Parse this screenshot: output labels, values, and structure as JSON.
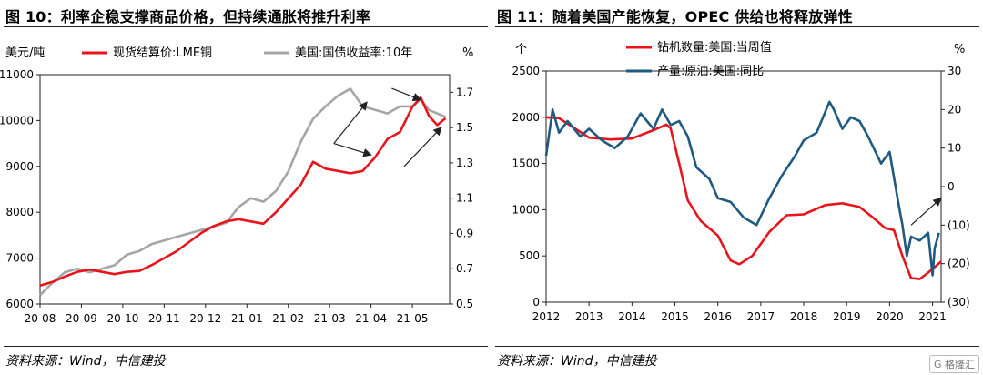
{
  "charts": [
    {
      "title": "图 10：利率企稳支撑商品价格，但持续通胀将推升利率",
      "source": "资料来源：Wind，中信建投",
      "ylabel_left": "美元/吨",
      "ylabel_right": "%",
      "legend": [
        "现货结算价:LME铜",
        "美国:国债收益率:10年"
      ]
    },
    {
      "title": "图 11：随着美国产能恢复，OPEC 供给也将释放弹性",
      "source": "资料来源：Wind，中信建投",
      "ylabel_left": "个",
      "ylabel_right": "%",
      "legend": [
        "钻机数量:美国:当周值",
        "产量:原油:美国:同比"
      ]
    }
  ],
  "chart_data": [
    {
      "type": "line",
      "title": "图 10：利率企稳支撑商品价格，但持续通胀将推升利率",
      "x_ticks": [
        "20-08",
        "20-09",
        "20-10",
        "20-11",
        "20-12",
        "21-01",
        "21-02",
        "21-03",
        "21-04",
        "21-05"
      ],
      "x_range": [
        0,
        9.9
      ],
      "y_left": {
        "label": "美元/吨",
        "range": [
          6000,
          11000
        ],
        "ticks": [
          6000,
          7000,
          8000,
          9000,
          10000,
          11000
        ]
      },
      "y_right": {
        "label": "%",
        "range": [
          0.5,
          1.8
        ],
        "ticks": [
          0.5,
          0.7,
          0.9,
          1.1,
          1.3,
          1.5,
          1.7
        ]
      },
      "series": [
        {
          "name": "现货结算价:LME铜",
          "axis": "left",
          "color": "#e8141c",
          "x": [
            0,
            0.3,
            0.6,
            0.9,
            1.2,
            1.5,
            1.8,
            2.1,
            2.4,
            2.7,
            3.0,
            3.3,
            3.6,
            3.9,
            4.2,
            4.5,
            4.8,
            5.1,
            5.4,
            5.7,
            6.0,
            6.3,
            6.6,
            6.9,
            7.2,
            7.5,
            7.8,
            8.1,
            8.4,
            8.7,
            9.0,
            9.2,
            9.4,
            9.6,
            9.8
          ],
          "values": [
            6400,
            6480,
            6600,
            6700,
            6750,
            6700,
            6650,
            6700,
            6720,
            6850,
            7000,
            7150,
            7350,
            7550,
            7700,
            7800,
            7850,
            7800,
            7750,
            8000,
            8300,
            8600,
            9100,
            8950,
            8900,
            8850,
            8900,
            9200,
            9600,
            9750,
            10300,
            10500,
            10100,
            9900,
            10050
          ]
        },
        {
          "name": "美国:国债收益率:10年",
          "axis": "right",
          "color": "#a6a6a6",
          "x": [
            0,
            0.3,
            0.6,
            0.9,
            1.2,
            1.5,
            1.8,
            2.1,
            2.4,
            2.7,
            3.0,
            3.3,
            3.6,
            3.9,
            4.2,
            4.5,
            4.8,
            5.1,
            5.4,
            5.7,
            6.0,
            6.3,
            6.6,
            6.9,
            7.2,
            7.5,
            7.8,
            8.1,
            8.4,
            8.7,
            9.0,
            9.2,
            9.4,
            9.6,
            9.8
          ],
          "values": [
            0.55,
            0.62,
            0.68,
            0.7,
            0.68,
            0.7,
            0.72,
            0.78,
            0.8,
            0.84,
            0.86,
            0.88,
            0.9,
            0.92,
            0.94,
            0.96,
            1.05,
            1.1,
            1.08,
            1.14,
            1.25,
            1.42,
            1.55,
            1.62,
            1.68,
            1.72,
            1.62,
            1.6,
            1.58,
            1.62,
            1.62,
            1.66,
            1.6,
            1.58,
            1.56
          ]
        }
      ],
      "arrows": [
        {
          "from": [
            7.1,
            9500
          ],
          "to": [
            7.9,
            10400
          ]
        },
        {
          "from": [
            7.1,
            9500
          ],
          "to": [
            8.0,
            9250
          ]
        },
        {
          "from": [
            8.5,
            10700
          ],
          "to": [
            9.2,
            10450
          ]
        },
        {
          "from": [
            8.8,
            9000
          ],
          "to": [
            9.7,
            9850
          ]
        }
      ]
    },
    {
      "type": "line",
      "title": "图 11：随着美国产能恢复，OPEC 供给也将释放弹性",
      "x_ticks": [
        "2012",
        "2013",
        "2014",
        "2015",
        "2016",
        "2017",
        "2018",
        "2019",
        "2020",
        "2021"
      ],
      "x_range": [
        2012,
        2021.2
      ],
      "y_left": {
        "label": "个",
        "range": [
          0,
          2500
        ],
        "ticks": [
          0,
          500,
          1000,
          1500,
          2000,
          2500
        ]
      },
      "y_right": {
        "label": "%",
        "range": [
          -30,
          30
        ],
        "ticks": [
          -30,
          -20,
          -10,
          0,
          10,
          20,
          30
        ],
        "tick_labels": [
          "(30)",
          "(20)",
          "(10)",
          "0",
          "10",
          "20",
          "30"
        ]
      },
      "series": [
        {
          "name": "钻机数量:美国:当周值",
          "axis": "left",
          "color": "#e8141c",
          "x": [
            2012.0,
            2012.3,
            2012.6,
            2013.0,
            2013.5,
            2014.0,
            2014.5,
            2014.8,
            2014.9,
            2015.1,
            2015.3,
            2015.6,
            2016.0,
            2016.3,
            2016.5,
            2016.8,
            2017.2,
            2017.6,
            2018.0,
            2018.5,
            2018.9,
            2019.3,
            2019.6,
            2019.9,
            2020.1,
            2020.3,
            2020.5,
            2020.7,
            2020.9,
            2021.1,
            2021.2
          ],
          "values": [
            2000,
            1990,
            1900,
            1780,
            1760,
            1770,
            1860,
            1920,
            1880,
            1500,
            1100,
            880,
            720,
            450,
            410,
            500,
            760,
            940,
            950,
            1050,
            1070,
            1030,
            920,
            800,
            780,
            500,
            260,
            250,
            320,
            400,
            440
          ]
        },
        {
          "name": "产量:原油:美国:同比",
          "axis": "right",
          "color": "#1f5a80",
          "x": [
            2012.0,
            2012.15,
            2012.3,
            2012.5,
            2012.8,
            2013.0,
            2013.3,
            2013.6,
            2013.9,
            2014.2,
            2014.5,
            2014.7,
            2014.9,
            2015.1,
            2015.3,
            2015.5,
            2015.8,
            2016.0,
            2016.3,
            2016.6,
            2016.9,
            2017.2,
            2017.5,
            2017.8,
            2018.0,
            2018.3,
            2018.6,
            2018.7,
            2018.9,
            2019.1,
            2019.3,
            2019.5,
            2019.8,
            2020.0,
            2020.2,
            2020.3,
            2020.4,
            2020.5,
            2020.7,
            2020.9,
            2021.0,
            2021.05,
            2021.15
          ],
          "values": [
            8,
            20,
            14,
            17,
            13,
            15,
            12,
            10,
            13,
            19,
            15,
            20,
            16,
            17,
            13,
            5,
            2,
            -3,
            -4,
            -8,
            -10,
            -3,
            3,
            8,
            12,
            14,
            22,
            20,
            15,
            18,
            17,
            13,
            6,
            9,
            -4,
            -10,
            -18,
            -13,
            -14,
            -12,
            -23,
            -16,
            -12
          ]
        }
      ],
      "arrows": [
        {
          "from": [
            2020.5,
            -10
          ],
          "to": [
            2021.2,
            -3
          ]
        }
      ]
    }
  ]
}
